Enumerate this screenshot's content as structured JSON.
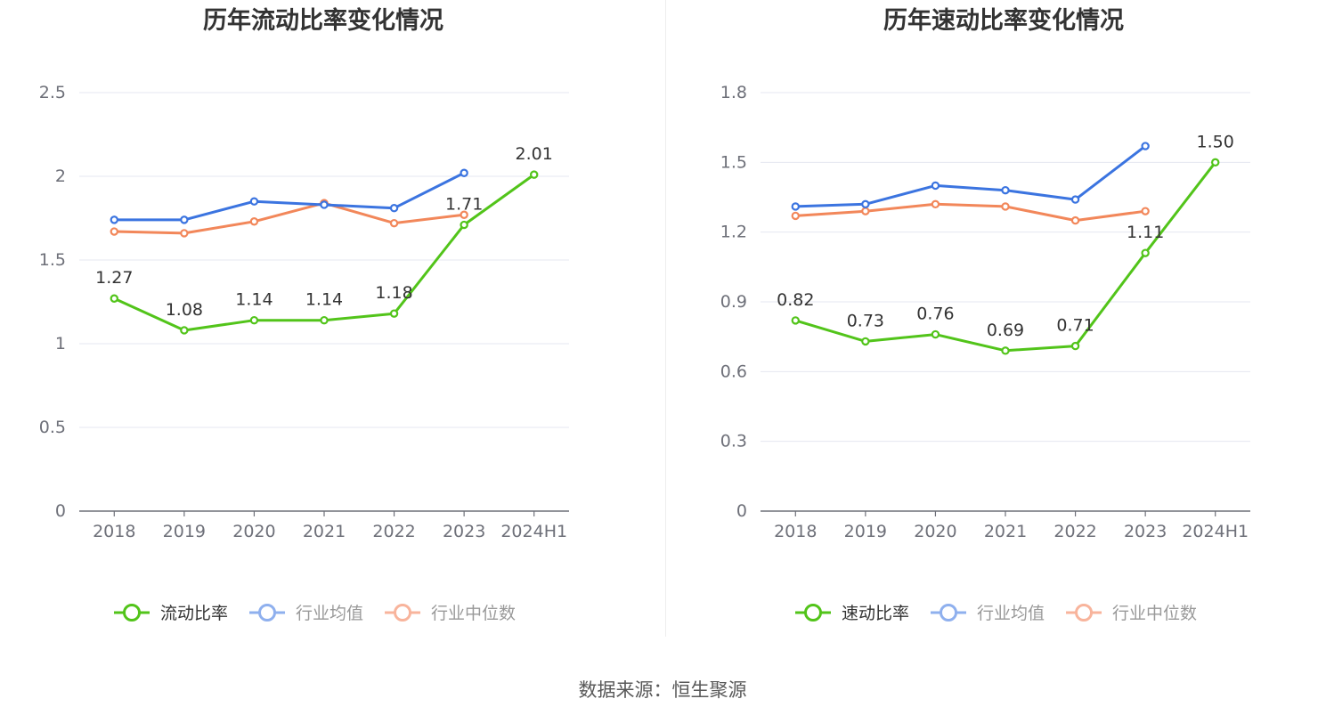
{
  "colors": {
    "main": "#52c41a",
    "avg": "#3b74e0",
    "median": "#f2875a",
    "avg_legend": "#8fb0ee",
    "median_legend": "#f8b49c",
    "grid": "#e5e7f0",
    "axis": "#6e7079"
  },
  "source": "数据来源：恒生聚源",
  "chart_data": [
    {
      "type": "line",
      "title": "历年流动比率变化情况",
      "categories": [
        "2018",
        "2019",
        "2020",
        "2021",
        "2022",
        "2023",
        "2024H1"
      ],
      "ylim": [
        0,
        2.5
      ],
      "yticks": [
        "0",
        "0.5",
        "1",
        "1.5",
        "2",
        "2.5"
      ],
      "grid": true,
      "legend_position": "bottom",
      "series": [
        {
          "name": "流动比率",
          "values": [
            1.27,
            1.08,
            1.14,
            1.14,
            1.18,
            1.71,
            2.01
          ],
          "labels": [
            "1.27",
            "1.08",
            "1.14",
            "1.14",
            "1.18",
            "1.71",
            "2.01"
          ]
        },
        {
          "name": "行业均值",
          "values": [
            1.74,
            1.74,
            1.85,
            1.83,
            1.81,
            2.02,
            null
          ]
        },
        {
          "name": "行业中位数",
          "values": [
            1.67,
            1.66,
            1.73,
            1.84,
            1.72,
            1.77,
            null
          ]
        }
      ]
    },
    {
      "type": "line",
      "title": "历年速动比率变化情况",
      "categories": [
        "2018",
        "2019",
        "2020",
        "2021",
        "2022",
        "2023",
        "2024H1"
      ],
      "ylim": [
        0,
        1.8
      ],
      "yticks": [
        "0",
        "0.3",
        "0.6",
        "0.9",
        "1.2",
        "1.5",
        "1.8"
      ],
      "grid": true,
      "legend_position": "bottom",
      "series": [
        {
          "name": "速动比率",
          "values": [
            0.82,
            0.73,
            0.76,
            0.69,
            0.71,
            1.11,
            1.5
          ],
          "labels": [
            "0.82",
            "0.73",
            "0.76",
            "0.69",
            "0.71",
            "1.11",
            "1.50"
          ]
        },
        {
          "name": "行业均值",
          "values": [
            1.31,
            1.32,
            1.4,
            1.38,
            1.34,
            1.57,
            null
          ]
        },
        {
          "name": "行业中位数",
          "values": [
            1.27,
            1.29,
            1.32,
            1.31,
            1.25,
            1.29,
            null
          ]
        }
      ]
    }
  ]
}
